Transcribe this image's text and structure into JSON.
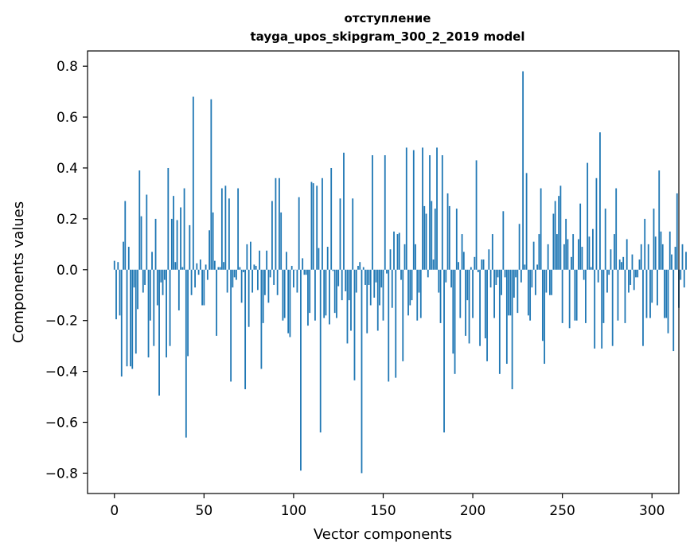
{
  "chart_data": {
    "type": "bar",
    "title": "отступление",
    "subtitle": "tayga_upos_skipgram_300_2_2019 model",
    "xlabel": "Vector components",
    "ylabel": "Components values",
    "xlim": [
      -15,
      315
    ],
    "ylim": [
      -0.88,
      0.86
    ],
    "xticks": [
      0,
      50,
      100,
      150,
      200,
      250,
      300
    ],
    "yticks": [
      -0.8,
      -0.6,
      -0.4,
      -0.2,
      0.0,
      0.2,
      0.4,
      0.6,
      0.8
    ],
    "xtick_labels": [
      "0",
      "50",
      "100",
      "150",
      "200",
      "250",
      "300"
    ],
    "ytick_labels": [
      "−0.8",
      "−0.6",
      "−0.4",
      "−0.2",
      "0.0",
      "0.2",
      "0.4",
      "0.6",
      "0.8"
    ],
    "bar_color": "#1f77b4",
    "grid": false,
    "legend": "none",
    "x_start": 0,
    "values": [
      0.035,
      -0.195,
      0.03,
      -0.18,
      -0.42,
      0.11,
      0.27,
      -0.38,
      0.09,
      -0.38,
      -0.39,
      -0.07,
      -0.33,
      -0.155,
      0.39,
      0.21,
      -0.09,
      -0.06,
      0.295,
      -0.345,
      -0.2,
      0.07,
      -0.3,
      0.2,
      -0.14,
      -0.495,
      -0.05,
      -0.1,
      -0.04,
      -0.345,
      0.4,
      -0.3,
      0.2,
      0.29,
      0.03,
      0.195,
      -0.16,
      0.245,
      0.01,
      0.32,
      -0.66,
      -0.34,
      0.175,
      -0.1,
      0.68,
      -0.07,
      0.025,
      -0.02,
      0.04,
      -0.14,
      -0.14,
      0.02,
      -0.04,
      0.155,
      0.67,
      0.225,
      0.035,
      -0.26,
      0.01,
      0.01,
      0.32,
      0.03,
      0.33,
      -0.09,
      0.28,
      -0.44,
      -0.07,
      -0.03,
      -0.04,
      0.32,
      0.01,
      -0.13,
      -0.01,
      -0.47,
      0.1,
      -0.225,
      0.11,
      -0.09,
      0.02,
      0.015,
      -0.08,
      0.075,
      -0.39,
      -0.21,
      -0.1,
      0.075,
      -0.13,
      -0.03,
      0.27,
      -0.06,
      0.36,
      -0.1,
      0.36,
      0.225,
      -0.2,
      -0.19,
      0.07,
      -0.25,
      -0.265,
      0.015,
      -0.07,
      0.0,
      -0.09,
      0.285,
      -0.79,
      0.045,
      -0.02,
      -0.02,
      -0.22,
      -0.17,
      0.345,
      0.34,
      -0.2,
      0.33,
      0.085,
      -0.64,
      0.36,
      -0.19,
      -0.18,
      0.09,
      -0.215,
      0.4,
      -0.005,
      -0.17,
      -0.19,
      -0.065,
      0.28,
      -0.12,
      0.46,
      -0.085,
      -0.29,
      -0.12,
      -0.24,
      0.28,
      -0.435,
      -0.09,
      0.015,
      0.03,
      -0.8,
      0.01,
      -0.06,
      -0.25,
      -0.06,
      -0.14,
      0.45,
      -0.11,
      -0.05,
      -0.24,
      -0.14,
      -0.07,
      -0.2,
      0.45,
      -0.015,
      -0.44,
      0.08,
      -0.15,
      0.15,
      -0.425,
      0.14,
      0.145,
      -0.04,
      -0.36,
      0.1,
      0.48,
      -0.18,
      -0.14,
      -0.12,
      0.47,
      0.1,
      -0.2,
      -0.09,
      -0.19,
      0.48,
      0.25,
      0.22,
      -0.03,
      0.45,
      0.27,
      0.04,
      0.24,
      0.48,
      -0.09,
      -0.21,
      0.45,
      -0.64,
      -0.05,
      0.3,
      0.25,
      -0.07,
      -0.33,
      -0.41,
      0.24,
      0.03,
      -0.19,
      0.14,
      0.07,
      -0.26,
      -0.12,
      -0.29,
      0.01,
      -0.19,
      0.05,
      0.43,
      -0.01,
      -0.3,
      0.04,
      0.04,
      -0.27,
      -0.36,
      0.08,
      -0.07,
      0.14,
      -0.19,
      -0.06,
      -0.03,
      -0.41,
      -0.1,
      0.23,
      -0.03,
      -0.37,
      -0.18,
      -0.18,
      -0.47,
      -0.11,
      -0.03,
      -0.17,
      0.18,
      -0.05,
      0.78,
      0.02,
      0.38,
      -0.18,
      -0.2,
      -0.07,
      0.11,
      -0.1,
      0.02,
      0.14,
      0.32,
      -0.28,
      -0.37,
      -0.09,
      0.1,
      -0.1,
      -0.1,
      0.22,
      0.27,
      0.14,
      0.29,
      0.33,
      -0.21,
      0.1,
      0.2,
      0.12,
      -0.23,
      0.05,
      0.14,
      -0.2,
      -0.2,
      0.12,
      0.26,
      0.09,
      -0.04,
      -0.21,
      0.42,
      0.13,
      0.01,
      0.16,
      -0.31,
      0.36,
      -0.05,
      0.54,
      -0.31,
      -0.21,
      0.24,
      -0.09,
      -0.02,
      0.08,
      -0.3,
      0.14,
      0.32,
      -0.2,
      0.04,
      0.03,
      0.05,
      -0.21,
      0.12,
      -0.09,
      -0.06,
      0.06,
      -0.08,
      -0.03,
      -0.03,
      0.04,
      0.1,
      -0.3,
      0.2,
      -0.19,
      0.1,
      -0.19,
      -0.13,
      0.24,
      0.13,
      -0.14,
      0.39,
      0.15,
      0.1,
      -0.19,
      -0.19,
      -0.25,
      0.15,
      0.06,
      -0.32,
      0.09,
      0.3,
      -0.15,
      -0.04,
      0.1,
      -0.07,
      0.07
    ]
  }
}
